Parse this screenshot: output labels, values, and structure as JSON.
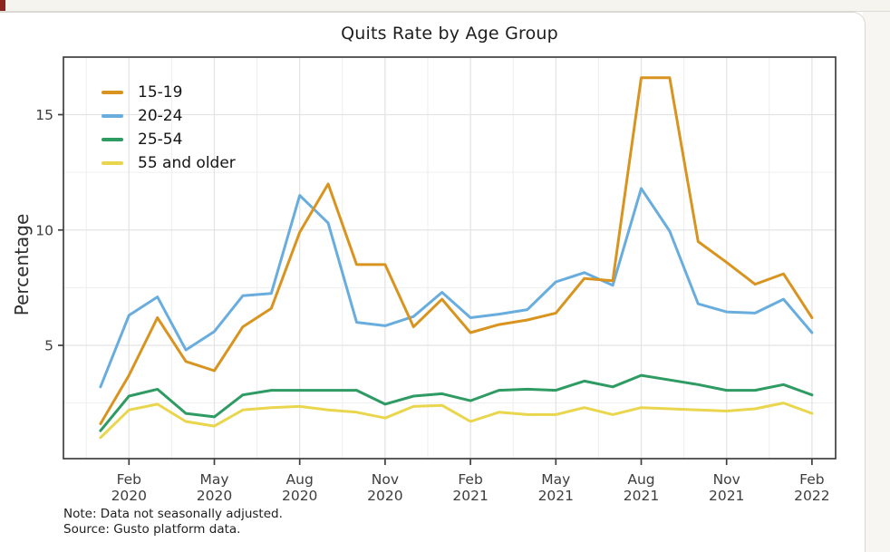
{
  "page": {
    "title": "Quits Rate by Age Group",
    "note_line1": "Note: Data not seasonally adjusted.",
    "note_line2": "Source: Gusto platform data."
  },
  "chart_data": {
    "type": "line",
    "title": "Quits Rate by Age Group",
    "xlabel": "",
    "ylabel": "Percentage",
    "ylim": [
      0.1,
      17.5
    ],
    "yticks": [
      5,
      10,
      15
    ],
    "y_minor_ticks": [
      2.5,
      7.5,
      12.5
    ],
    "grid": "major and minor gridlines on, light gray",
    "legend_position": "top-left inside plot",
    "x": [
      "Jan 2020",
      "Feb 2020",
      "Mar 2020",
      "Apr 2020",
      "May 2020",
      "Jun 2020",
      "Jul 2020",
      "Aug 2020",
      "Sep 2020",
      "Oct 2020",
      "Nov 2020",
      "Dec 2020",
      "Jan 2021",
      "Feb 2021",
      "Mar 2021",
      "Apr 2021",
      "May 2021",
      "Jun 2021",
      "Jul 2021",
      "Aug 2021",
      "Sep 2021",
      "Oct 2021",
      "Nov 2021",
      "Dec 2021",
      "Jan 2022",
      "Feb 2022"
    ],
    "x_ticks": [
      {
        "index": 1,
        "month": "Feb",
        "year": "2020"
      },
      {
        "index": 4,
        "month": "May",
        "year": "2020"
      },
      {
        "index": 7,
        "month": "Aug",
        "year": "2020"
      },
      {
        "index": 10,
        "month": "Nov",
        "year": "2020"
      },
      {
        "index": 13,
        "month": "Feb",
        "year": "2021"
      },
      {
        "index": 16,
        "month": "May",
        "year": "2021"
      },
      {
        "index": 19,
        "month": "Aug",
        "year": "2021"
      },
      {
        "index": 22,
        "month": "Nov",
        "year": "2021"
      },
      {
        "index": 25,
        "month": "Feb",
        "year": "2022"
      }
    ],
    "series": [
      {
        "name": "15-19",
        "color": "#D9941F",
        "values": [
          1.6,
          3.7,
          6.2,
          4.3,
          3.9,
          5.8,
          6.6,
          9.9,
          12.0,
          8.5,
          8.5,
          5.8,
          7.0,
          5.55,
          5.9,
          6.1,
          6.4,
          7.9,
          7.8,
          16.6,
          16.6,
          9.5,
          8.6,
          7.65,
          8.1,
          6.2
        ]
      },
      {
        "name": "20-24",
        "color": "#68ADDE",
        "values": [
          3.2,
          6.3,
          7.1,
          4.8,
          5.6,
          7.15,
          7.25,
          11.5,
          10.3,
          6.0,
          5.85,
          6.25,
          7.3,
          6.2,
          6.35,
          6.55,
          7.75,
          8.15,
          7.6,
          11.8,
          9.95,
          6.8,
          6.45,
          6.4,
          7.0,
          5.55
        ]
      },
      {
        "name": "25-54",
        "color": "#2E9B63",
        "values": [
          1.3,
          2.8,
          3.1,
          2.05,
          1.9,
          2.85,
          3.05,
          3.05,
          3.05,
          3.05,
          2.45,
          2.8,
          2.9,
          2.6,
          3.05,
          3.1,
          3.05,
          3.45,
          3.2,
          3.7,
          3.5,
          3.3,
          3.05,
          3.05,
          3.3,
          2.85
        ]
      },
      {
        "name": "55 and older",
        "color": "#EAD64C",
        "values": [
          1.0,
          2.2,
          2.45,
          1.7,
          1.5,
          2.2,
          2.3,
          2.35,
          2.2,
          2.1,
          1.85,
          2.35,
          2.4,
          1.7,
          2.1,
          2.0,
          2.0,
          2.3,
          2.0,
          2.3,
          2.25,
          2.2,
          2.15,
          2.25,
          2.5,
          2.05
        ]
      }
    ],
    "colors": {
      "axis_border": "#3f3f3f",
      "major_grid": "#e4e4e4",
      "minor_grid": "#f0efef",
      "tick_label": "#3d3d3d",
      "accent_red_top": "#8c2420",
      "accent_red_bottom": "#b23a2d"
    }
  }
}
